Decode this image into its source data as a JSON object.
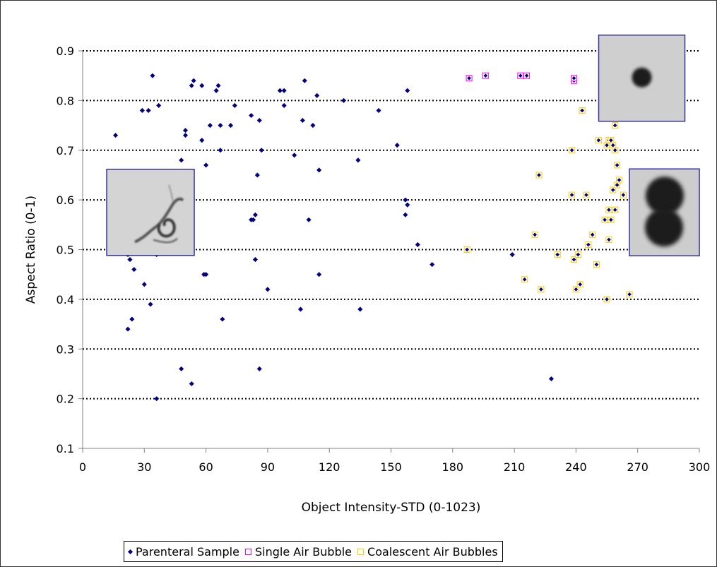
{
  "chart_data": {
    "type": "scatter",
    "title": "",
    "xlabel": "Object Intensity-STD (0-1023)",
    "ylabel": "Aspect Ratio (0-1)",
    "xlim": [
      0,
      300
    ],
    "ylim": [
      0.1,
      0.9
    ],
    "x_ticks": [
      "0",
      "30",
      "60",
      "90",
      "120",
      "150",
      "180",
      "210",
      "240",
      "270",
      "300"
    ],
    "y_ticks": [
      "0.1",
      "0.2",
      "0.3",
      "0.4",
      "0.5",
      "0.6",
      "0.7",
      "0.8",
      "0.9"
    ],
    "grid": "horizontal dotted",
    "legend_position": "bottom",
    "series": [
      {
        "name": "Parenteral Sample",
        "color": "#000080",
        "marker": "diamond",
        "points": [
          [
            16,
            0.73
          ],
          [
            19,
            0.53
          ],
          [
            22,
            0.49
          ],
          [
            23,
            0.48
          ],
          [
            22,
            0.34
          ],
          [
            24,
            0.36
          ],
          [
            25,
            0.46
          ],
          [
            27,
            0.59
          ],
          [
            28,
            0.59
          ],
          [
            29,
            0.78
          ],
          [
            30,
            0.43
          ],
          [
            31,
            0.59
          ],
          [
            32,
            0.78
          ],
          [
            33,
            0.58
          ],
          [
            33,
            0.39
          ],
          [
            34,
            0.53
          ],
          [
            34,
            0.85
          ],
          [
            36,
            0.49
          ],
          [
            36,
            0.2
          ],
          [
            37,
            0.79
          ],
          [
            48,
            0.68
          ],
          [
            48,
            0.26
          ],
          [
            50,
            0.74
          ],
          [
            50,
            0.73
          ],
          [
            53,
            0.83
          ],
          [
            54,
            0.84
          ],
          [
            53,
            0.23
          ],
          [
            58,
            0.72
          ],
          [
            58,
            0.83
          ],
          [
            59,
            0.45
          ],
          [
            60,
            0.45
          ],
          [
            60,
            0.67
          ],
          [
            62,
            0.75
          ],
          [
            65,
            0.82
          ],
          [
            66,
            0.83
          ],
          [
            67,
            0.7
          ],
          [
            67,
            0.75
          ],
          [
            68,
            0.36
          ],
          [
            72,
            0.75
          ],
          [
            74,
            0.79
          ],
          [
            82,
            0.77
          ],
          [
            82,
            0.56
          ],
          [
            83,
            0.56
          ],
          [
            84,
            0.57
          ],
          [
            84,
            0.48
          ],
          [
            85,
            0.65
          ],
          [
            86,
            0.76
          ],
          [
            87,
            0.7
          ],
          [
            86,
            0.26
          ],
          [
            90,
            0.42
          ],
          [
            96,
            0.82
          ],
          [
            98,
            0.79
          ],
          [
            98,
            0.82
          ],
          [
            103,
            0.69
          ],
          [
            106,
            0.38
          ],
          [
            107,
            0.76
          ],
          [
            108,
            0.84
          ],
          [
            110,
            0.56
          ],
          [
            112,
            0.75
          ],
          [
            114,
            0.81
          ],
          [
            115,
            0.66
          ],
          [
            115,
            0.45
          ],
          [
            127,
            0.8
          ],
          [
            134,
            0.68
          ],
          [
            135,
            0.38
          ],
          [
            144,
            0.78
          ],
          [
            153,
            0.71
          ],
          [
            157,
            0.57
          ],
          [
            157,
            0.6
          ],
          [
            158,
            0.59
          ],
          [
            158,
            0.82
          ],
          [
            163,
            0.51
          ],
          [
            170,
            0.47
          ],
          [
            209,
            0.49
          ],
          [
            228,
            0.24
          ]
        ]
      },
      {
        "name": "Single Air Bubble",
        "color": "#ff00ff",
        "marker": "square",
        "points": [
          [
            188,
            0.845
          ],
          [
            196,
            0.85
          ],
          [
            213,
            0.85
          ],
          [
            216,
            0.85
          ],
          [
            239,
            0.84
          ],
          [
            239,
            0.845
          ]
        ]
      },
      {
        "name": "Coalescent Air Bubbles",
        "color": "#ffcc00",
        "marker": "square",
        "points": [
          [
            187,
            0.5
          ],
          [
            215,
            0.44
          ],
          [
            220,
            0.53
          ],
          [
            222,
            0.65
          ],
          [
            223,
            0.42
          ],
          [
            231,
            0.49
          ],
          [
            238,
            0.7
          ],
          [
            238,
            0.61
          ],
          [
            239,
            0.48
          ],
          [
            240,
            0.42
          ],
          [
            241,
            0.49
          ],
          [
            242,
            0.43
          ],
          [
            243,
            0.78
          ],
          [
            245,
            0.61
          ],
          [
            246,
            0.51
          ],
          [
            248,
            0.53
          ],
          [
            250,
            0.47
          ],
          [
            251,
            0.72
          ],
          [
            254,
            0.56
          ],
          [
            254,
            0.77
          ],
          [
            255,
            0.78
          ],
          [
            255,
            0.71
          ],
          [
            255,
            0.4
          ],
          [
            256,
            0.58
          ],
          [
            256,
            0.52
          ],
          [
            256,
            0.72
          ],
          [
            257,
            0.72
          ],
          [
            257,
            0.56
          ],
          [
            258,
            0.71
          ],
          [
            258,
            0.62
          ],
          [
            259,
            0.7
          ],
          [
            259,
            0.58
          ],
          [
            259,
            0.75
          ],
          [
            260,
            0.67
          ],
          [
            260,
            0.63
          ],
          [
            261,
            0.64
          ],
          [
            263,
            0.61
          ],
          [
            266,
            0.41
          ],
          [
            268,
            0.78
          ]
        ]
      }
    ]
  },
  "insets": [
    {
      "name": "parenteral-particle-image",
      "x": 33,
      "y": 0.575
    },
    {
      "name": "single-bubble-image",
      "x": 272,
      "y": 0.845
    },
    {
      "name": "coalescent-bubbles-image",
      "x": 283,
      "y": 0.575
    }
  ]
}
